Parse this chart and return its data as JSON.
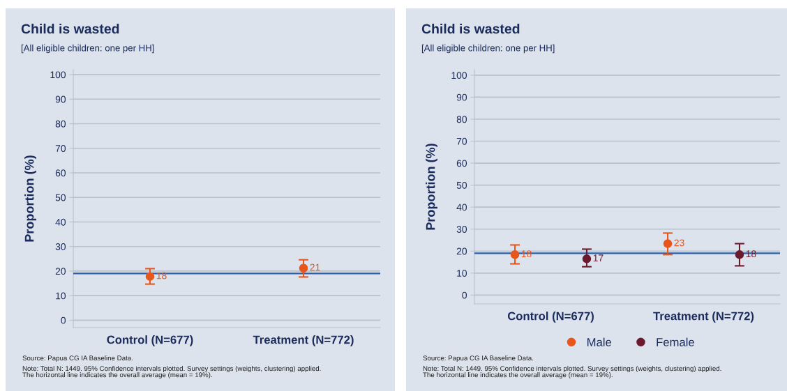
{
  "chart_data": [
    {
      "type": "scatter",
      "title": "Child is wasted",
      "subtitle": "[All eligible children: one per HH]",
      "ylabel": "Proportion (%)",
      "categories": [
        "Control (N=677)",
        "Treatment (N=772)"
      ],
      "series": [
        {
          "color": "#e8561c",
          "values": [
            17.8,
            21.2
          ],
          "errors": [
            [
              14.7,
              21.0
            ],
            [
              17.6,
              24.6
            ]
          ],
          "value_labels": [
            "18",
            "21"
          ]
        }
      ],
      "ylim": [
        -3,
        102
      ],
      "yticks": [
        0,
        10,
        20,
        30,
        40,
        50,
        60,
        70,
        80,
        90,
        100
      ],
      "grid": "y",
      "marker": "circle",
      "ref_lines": [
        {
          "axis": "y",
          "value": 19,
          "color": "#2a5caa"
        }
      ],
      "annotations": [
        "Source: Papua CG IA Baseline Data.",
        "Note: Total N: 1449. 95% Confidence intervals plotted. Survey settings (weights, clustering) applied.\nThe horizontal line indicates the overall average (mean = 19%)."
      ]
    },
    {
      "type": "scatter",
      "title": "Child is wasted",
      "subtitle": "[All eligible children: one per HH]",
      "ylabel": "Proportion (%)",
      "categories": [
        "Control (N=677)",
        "Treatment (N=772)"
      ],
      "series": [
        {
          "name": "Male",
          "color": "#e8561c",
          "values": [
            18.4,
            23.4
          ],
          "errors": [
            [
              14.2,
              22.8
            ],
            [
              18.4,
              28.2
            ]
          ],
          "value_labels": [
            "18",
            "23"
          ]
        },
        {
          "name": "Female",
          "color": "#6b1a2e",
          "values": [
            16.5,
            18.4
          ],
          "errors": [
            [
              12.9,
              20.9
            ],
            [
              13.3,
              23.4
            ]
          ],
          "value_labels": [
            "17",
            "18"
          ]
        }
      ],
      "ylim": [
        -4,
        102.5
      ],
      "yticks": [
        0,
        10,
        20,
        30,
        40,
        50,
        60,
        70,
        80,
        90,
        100
      ],
      "grid": "y",
      "marker": "circle",
      "legend": "bottom",
      "ref_lines": [
        {
          "axis": "y",
          "value": 19,
          "color": "#2a5caa"
        }
      ],
      "annotations": [
        "Source: Papua CG IA Baseline Data.",
        "Note: Total N: 1449. 95% Confidence intervals plotted. Survey settings (weights, clustering) applied.\nThe horizontal line indicates the overall average (mean = 19%)."
      ]
    }
  ]
}
